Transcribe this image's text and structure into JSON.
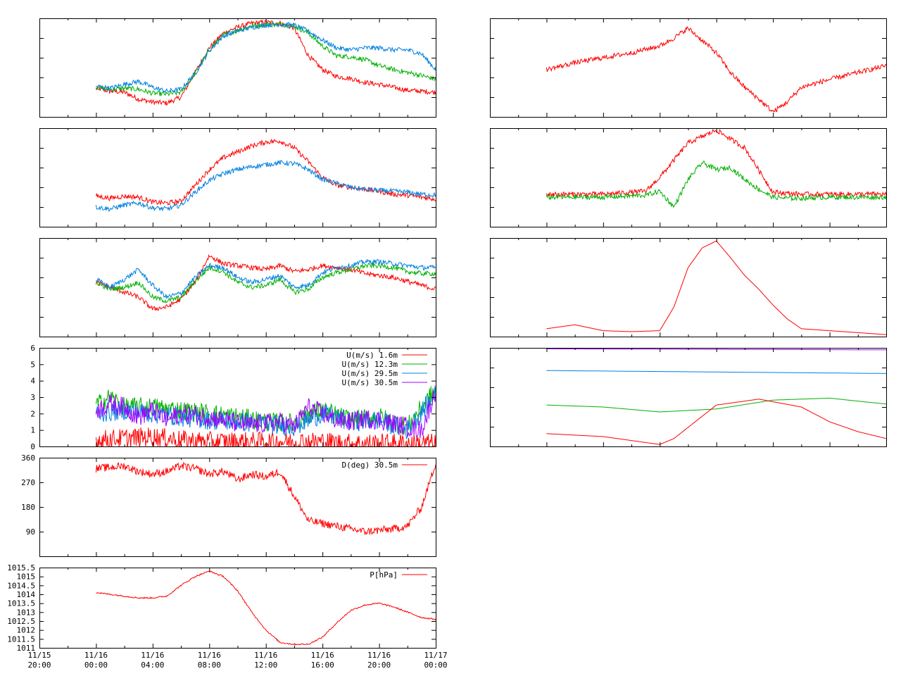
{
  "colors": {
    "red": "#ff0000",
    "green": "#00b000",
    "blue": "#0080e0",
    "purple": "#a000ff",
    "frame": "#000000"
  },
  "x_axis": {
    "start": "11/15 20:00",
    "end": "11/17 00:00",
    "ticks": [
      {
        "date": "11/15",
        "time": "20:00",
        "hours": 0
      },
      {
        "date": "11/16",
        "time": "00:00",
        "hours": 4
      },
      {
        "date": "11/16",
        "time": "04:00",
        "hours": 8
      },
      {
        "date": "11/16",
        "time": "08:00",
        "hours": 12
      },
      {
        "date": "11/16",
        "time": "12:00",
        "hours": 16
      },
      {
        "date": "11/16",
        "time": "16:00",
        "hours": 20
      },
      {
        "date": "11/16",
        "time": "20:00",
        "hours": 24
      },
      {
        "date": "11/17",
        "time": "00:00",
        "hours": 28
      }
    ]
  },
  "chart_data": [
    {
      "id": "left-1",
      "type": "line",
      "ylim": [
        0,
        1
      ],
      "ytick_labels": [],
      "series": [
        {
          "color": "red",
          "x": [
            4,
            5,
            6,
            7,
            8,
            9,
            10,
            11,
            12,
            13,
            14,
            15,
            16,
            17,
            18,
            19,
            20,
            21,
            22,
            23,
            24,
            25,
            26,
            27,
            28
          ],
          "y": [
            0.29,
            0.26,
            0.25,
            0.18,
            0.15,
            0.14,
            0.2,
            0.45,
            0.7,
            0.85,
            0.91,
            0.95,
            0.96,
            0.95,
            0.9,
            0.62,
            0.48,
            0.41,
            0.39,
            0.35,
            0.33,
            0.3,
            0.27,
            0.26,
            0.25
          ]
        },
        {
          "color": "green",
          "x": [
            4,
            5,
            6,
            7,
            8,
            9,
            10,
            11,
            12,
            13,
            14,
            15,
            16,
            17,
            18,
            19,
            20,
            21,
            22,
            23,
            24,
            25,
            26,
            27,
            28
          ],
          "y": [
            0.3,
            0.28,
            0.29,
            0.28,
            0.24,
            0.23,
            0.25,
            0.44,
            0.68,
            0.83,
            0.88,
            0.92,
            0.94,
            0.94,
            0.92,
            0.85,
            0.72,
            0.62,
            0.61,
            0.58,
            0.52,
            0.48,
            0.45,
            0.42,
            0.38
          ]
        },
        {
          "color": "blue",
          "x": [
            4,
            5,
            6,
            7,
            8,
            9,
            10,
            11,
            12,
            13,
            14,
            15,
            16,
            17,
            18,
            19,
            20,
            21,
            22,
            23,
            24,
            25,
            26,
            27,
            28
          ],
          "y": [
            0.31,
            0.29,
            0.33,
            0.36,
            0.3,
            0.26,
            0.28,
            0.44,
            0.67,
            0.82,
            0.87,
            0.91,
            0.93,
            0.94,
            0.93,
            0.87,
            0.78,
            0.7,
            0.68,
            0.7,
            0.7,
            0.68,
            0.68,
            0.64,
            0.48
          ]
        }
      ]
    },
    {
      "id": "left-2",
      "type": "line",
      "ylim": [
        0,
        1
      ],
      "ytick_labels": [],
      "series": [
        {
          "color": "red",
          "x": [
            4,
            5,
            6,
            7,
            8,
            9,
            10,
            11,
            12,
            13,
            14,
            15,
            16,
            17,
            18,
            19,
            20,
            21,
            22,
            23,
            24,
            25,
            26,
            27,
            28
          ],
          "y": [
            0.31,
            0.29,
            0.31,
            0.3,
            0.25,
            0.24,
            0.26,
            0.42,
            0.58,
            0.7,
            0.76,
            0.82,
            0.86,
            0.87,
            0.8,
            0.66,
            0.5,
            0.42,
            0.4,
            0.38,
            0.36,
            0.33,
            0.32,
            0.3,
            0.28
          ]
        },
        {
          "color": "blue",
          "x": [
            4,
            5,
            6,
            7,
            8,
            9,
            10,
            11,
            12,
            13,
            14,
            15,
            16,
            17,
            18,
            19,
            20,
            21,
            22,
            23,
            24,
            25,
            26,
            27,
            28
          ],
          "y": [
            0.2,
            0.18,
            0.22,
            0.24,
            0.19,
            0.18,
            0.22,
            0.35,
            0.47,
            0.54,
            0.58,
            0.61,
            0.63,
            0.65,
            0.64,
            0.58,
            0.48,
            0.44,
            0.4,
            0.38,
            0.37,
            0.36,
            0.35,
            0.33,
            0.32
          ]
        }
      ]
    },
    {
      "id": "left-3",
      "type": "line",
      "ylim": [
        0,
        1
      ],
      "ytick_labels": [],
      "series": [
        {
          "color": "red",
          "x": [
            4,
            5,
            6,
            7,
            8,
            9,
            10,
            11,
            12,
            13,
            14,
            15,
            16,
            17,
            18,
            19,
            20,
            21,
            22,
            23,
            24,
            25,
            26,
            27,
            28
          ],
          "y": [
            0.55,
            0.5,
            0.45,
            0.4,
            0.28,
            0.3,
            0.38,
            0.55,
            0.82,
            0.74,
            0.72,
            0.7,
            0.68,
            0.72,
            0.66,
            0.68,
            0.72,
            0.7,
            0.68,
            0.64,
            0.62,
            0.6,
            0.56,
            0.52,
            0.48
          ]
        },
        {
          "color": "green",
          "x": [
            4,
            5,
            6,
            7,
            8,
            9,
            10,
            11,
            12,
            13,
            14,
            15,
            16,
            17,
            18,
            19,
            20,
            21,
            22,
            23,
            24,
            25,
            26,
            27,
            28
          ],
          "y": [
            0.55,
            0.48,
            0.5,
            0.55,
            0.4,
            0.36,
            0.4,
            0.56,
            0.7,
            0.66,
            0.55,
            0.5,
            0.52,
            0.58,
            0.45,
            0.48,
            0.6,
            0.65,
            0.68,
            0.72,
            0.72,
            0.7,
            0.66,
            0.64,
            0.64
          ]
        },
        {
          "color": "blue",
          "x": [
            4,
            5,
            6,
            7,
            8,
            9,
            10,
            11,
            12,
            13,
            14,
            15,
            16,
            17,
            18,
            19,
            20,
            21,
            22,
            23,
            24,
            25,
            26,
            27,
            28
          ],
          "y": [
            0.58,
            0.5,
            0.58,
            0.68,
            0.52,
            0.4,
            0.44,
            0.6,
            0.72,
            0.7,
            0.6,
            0.55,
            0.58,
            0.62,
            0.5,
            0.52,
            0.65,
            0.7,
            0.72,
            0.76,
            0.76,
            0.74,
            0.72,
            0.7,
            0.7
          ]
        }
      ]
    },
    {
      "id": "left-4-wind-speed",
      "type": "line",
      "ylim": [
        0,
        6
      ],
      "ytick_labels": [
        "0",
        "1",
        "2",
        "3",
        "4",
        "5",
        "6"
      ],
      "legend_position": "top-right",
      "series": [
        {
          "name": "U(m/s)  1.6m",
          "color": "red",
          "x": [
            4,
            6,
            8,
            10,
            12,
            14,
            16,
            18,
            20,
            22,
            24,
            26,
            28
          ],
          "y": [
            0.4,
            0.5,
            0.6,
            0.4,
            0.3,
            0.3,
            0.3,
            0.3,
            0.3,
            0.2,
            0.2,
            0.2,
            0.2
          ]
        },
        {
          "name": "U(m/s) 12.3m",
          "color": "green",
          "x": [
            4,
            5,
            6,
            8,
            10,
            12,
            14,
            16,
            18,
            19,
            20,
            22,
            24,
            26,
            28
          ],
          "y": [
            2.5,
            3.0,
            2.4,
            2.4,
            2.2,
            2.0,
            1.8,
            1.5,
            1.4,
            2.0,
            2.2,
            1.6,
            1.8,
            1.2,
            3.5
          ]
        },
        {
          "name": "U(m/s) 29.5m",
          "color": "blue",
          "x": [
            4,
            6,
            8,
            10,
            12,
            14,
            16,
            18,
            20,
            22,
            24,
            26,
            28
          ],
          "y": [
            2.0,
            2.2,
            2.0,
            1.8,
            1.6,
            1.5,
            1.4,
            1.2,
            2.0,
            1.5,
            1.6,
            1.0,
            3.2
          ]
        },
        {
          "name": "U(m/s) 30.5m",
          "color": "purple",
          "x": [
            4,
            5,
            6,
            7,
            8,
            9,
            10,
            11,
            12,
            13,
            14,
            15,
            16,
            17,
            18,
            19,
            20,
            21,
            22,
            23,
            24,
            25,
            26,
            27,
            28
          ],
          "y": [
            2.2,
            2.6,
            2.4,
            1.8,
            2.2,
            1.6,
            2.0,
            1.9,
            1.8,
            1.6,
            1.4,
            1.3,
            1.4,
            1.5,
            1.2,
            2.4,
            2.0,
            1.6,
            1.5,
            1.7,
            1.6,
            1.4,
            1.2,
            1.0,
            3.4
          ]
        }
      ]
    },
    {
      "id": "left-5-wind-direction",
      "type": "line",
      "ylim": [
        0,
        360
      ],
      "ytick_labels": [
        "90",
        "180",
        "270",
        "360"
      ],
      "legend_position": "top-right",
      "series": [
        {
          "name": "D(deg)  30.5m",
          "color": "red",
          "x": [
            4,
            5,
            6,
            7,
            8,
            9,
            10,
            11,
            12,
            13,
            14,
            15,
            16,
            17,
            18,
            19,
            20,
            21,
            22,
            23,
            24,
            25,
            26,
            27,
            28
          ],
          "y": [
            320,
            325,
            330,
            310,
            300,
            310,
            330,
            320,
            300,
            310,
            280,
            300,
            290,
            310,
            220,
            130,
            120,
            110,
            100,
            90,
            95,
            100,
            110,
            180,
            340
          ]
        }
      ]
    },
    {
      "id": "left-6-pressure",
      "type": "line",
      "ylim": [
        1011,
        1015.5
      ],
      "ytick_labels": [
        "1011",
        "1011.5",
        "1012",
        "1012.5",
        "1013",
        "1013.5",
        "1014",
        "1014.5",
        "1015",
        "1015.5"
      ],
      "legend_position": "top-right",
      "series": [
        {
          "name": "P[hPa]",
          "color": "red",
          "x": [
            4,
            5,
            6,
            7,
            8,
            9,
            10,
            11,
            12,
            13,
            14,
            15,
            16,
            17,
            18,
            19,
            20,
            21,
            22,
            23,
            24,
            25,
            26,
            27,
            28
          ],
          "y": [
            1014.1,
            1014.0,
            1013.9,
            1013.8,
            1013.8,
            1013.9,
            1014.5,
            1015.0,
            1015.3,
            1015.0,
            1014.2,
            1013.0,
            1012.0,
            1011.3,
            1011.2,
            1011.2,
            1011.6,
            1012.4,
            1013.1,
            1013.4,
            1013.5,
            1013.3,
            1013.0,
            1012.7,
            1012.6
          ]
        }
      ]
    },
    {
      "id": "right-1",
      "type": "line",
      "ylim": [
        0,
        1
      ],
      "ytick_labels": [],
      "series": [
        {
          "color": "red",
          "x": [
            4,
            6,
            8,
            10,
            12,
            13,
            14,
            16,
            17,
            18,
            19,
            20,
            21,
            22,
            24,
            26,
            28
          ],
          "y": [
            0.48,
            0.55,
            0.6,
            0.65,
            0.72,
            0.8,
            0.9,
            0.65,
            0.45,
            0.3,
            0.18,
            0.05,
            0.15,
            0.3,
            0.38,
            0.45,
            0.52
          ]
        }
      ]
    },
    {
      "id": "right-2",
      "type": "line",
      "ylim": [
        0,
        1
      ],
      "ytick_labels": [],
      "series": [
        {
          "color": "red",
          "x": [
            4,
            8,
            11,
            12,
            14,
            16,
            18,
            20,
            22,
            24,
            28
          ],
          "y": [
            0.33,
            0.33,
            0.36,
            0.5,
            0.85,
            0.98,
            0.8,
            0.35,
            0.33,
            0.33,
            0.33
          ]
        },
        {
          "color": "green",
          "x": [
            4,
            8,
            11,
            12,
            13,
            14,
            15,
            16,
            17,
            18,
            19,
            20,
            21,
            22,
            24,
            28
          ],
          "y": [
            0.3,
            0.3,
            0.32,
            0.36,
            0.2,
            0.48,
            0.65,
            0.58,
            0.6,
            0.48,
            0.38,
            0.3,
            0.29,
            0.29,
            0.3,
            0.3
          ]
        }
      ]
    },
    {
      "id": "right-3",
      "type": "line",
      "ylim": [
        0,
        1
      ],
      "ytick_labels": [],
      "series": [
        {
          "color": "red",
          "x": [
            4,
            6,
            8,
            10,
            12,
            13,
            14,
            15,
            16,
            17,
            18,
            19,
            20,
            21,
            22,
            24,
            26,
            28
          ],
          "y": [
            0.08,
            0.12,
            0.06,
            0.05,
            0.06,
            0.3,
            0.7,
            0.9,
            0.97,
            0.8,
            0.62,
            0.48,
            0.32,
            0.18,
            0.08,
            0.06,
            0.04,
            0.02
          ]
        }
      ]
    },
    {
      "id": "right-4",
      "type": "line",
      "ylim": [
        0,
        1
      ],
      "ytick_labels": [],
      "series": [
        {
          "color": "purple",
          "x": [
            4,
            28
          ],
          "y": [
            0.99,
            0.98
          ]
        },
        {
          "color": "blue",
          "x": [
            4,
            28
          ],
          "y": [
            0.77,
            0.74
          ]
        },
        {
          "color": "green",
          "x": [
            4,
            8,
            12,
            16,
            20,
            24,
            28
          ],
          "y": [
            0.42,
            0.4,
            0.35,
            0.38,
            0.47,
            0.49,
            0.43
          ]
        },
        {
          "color": "red",
          "x": [
            4,
            8,
            12,
            13,
            16,
            19,
            22,
            24,
            26,
            28
          ],
          "y": [
            0.13,
            0.1,
            0.02,
            0.08,
            0.42,
            0.48,
            0.4,
            0.25,
            0.15,
            0.08
          ]
        }
      ]
    }
  ]
}
